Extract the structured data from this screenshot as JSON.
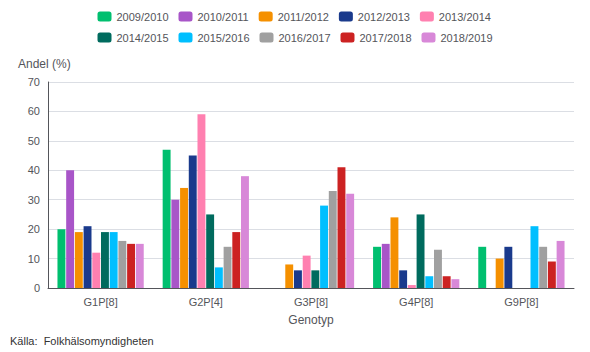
{
  "chart_data": {
    "type": "bar",
    "categories": [
      "G1P[8]",
      "G2P[4]",
      "G3P[8]",
      "G4P[8]",
      "G9P[8]"
    ],
    "series": [
      {
        "name": "2009/2010",
        "color": "#00BF6F",
        "values": [
          20,
          47,
          0,
          14,
          14
        ]
      },
      {
        "name": "2010/2011",
        "color": "#A855C8",
        "values": [
          40,
          30,
          0,
          15,
          0
        ]
      },
      {
        "name": "2011/2012",
        "color": "#F59000",
        "values": [
          19,
          34,
          8,
          24,
          10
        ]
      },
      {
        "name": "2012/2013",
        "color": "#1A3A8C",
        "values": [
          21,
          45,
          6,
          6,
          14
        ]
      },
      {
        "name": "2013/2014",
        "color": "#FF80B0",
        "values": [
          12,
          59,
          11,
          1,
          0
        ]
      },
      {
        "name": "2014/2015",
        "color": "#006B5E",
        "values": [
          19,
          25,
          6,
          25,
          0
        ]
      },
      {
        "name": "2015/2016",
        "color": "#00BFFF",
        "values": [
          19,
          7,
          28,
          4,
          21
        ]
      },
      {
        "name": "2016/2017",
        "color": "#A0A0A0",
        "values": [
          16,
          14,
          33,
          13,
          14
        ]
      },
      {
        "name": "2017/2018",
        "color": "#CC2222",
        "values": [
          15,
          19,
          41,
          4,
          9
        ]
      },
      {
        "name": "2018/2019",
        "color": "#D888D8",
        "values": [
          15,
          38,
          32,
          3,
          16
        ]
      }
    ],
    "xlabel": "Genotyp",
    "ylabel": "Andel (%)",
    "ylim": [
      0,
      70
    ],
    "yticks": [
      0,
      10,
      20,
      30,
      40,
      50,
      60,
      70
    ],
    "grid": true,
    "legend": "top",
    "annotations": [
      "Källa:  Folkhälsomyndigheten"
    ]
  }
}
